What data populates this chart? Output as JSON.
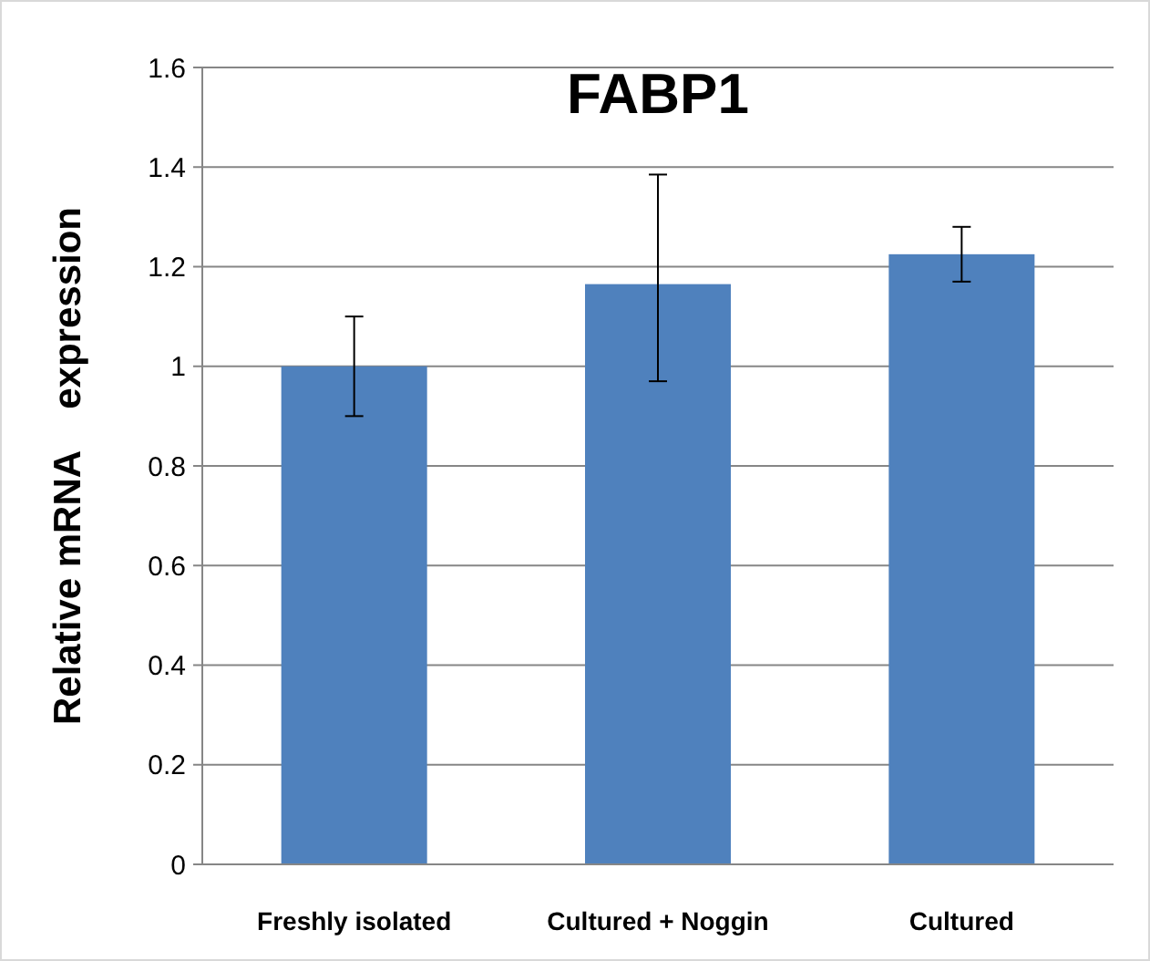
{
  "chart_data": {
    "type": "bar",
    "title": "FABP1",
    "ylabel": "Relative mRNA    expression",
    "categories": [
      "Freshly isolated",
      "Cultured + Noggin",
      "Cultured"
    ],
    "values": [
      1.0,
      1.165,
      1.225
    ],
    "errors": [
      0.1,
      [
        0.97,
        1.385
      ],
      0.055
    ],
    "color": "#4f81bd",
    "ylim": [
      0,
      1.6
    ],
    "yticks": [
      0,
      0.2,
      0.4,
      0.6,
      0.8,
      1,
      1.2,
      1.4,
      1.6
    ],
    "grid": "y"
  }
}
